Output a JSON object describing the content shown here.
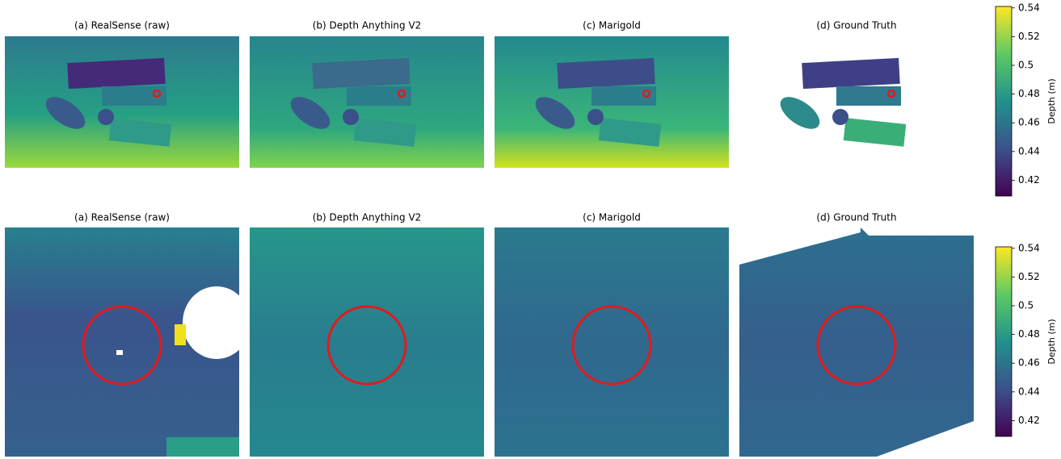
{
  "figure": {
    "rows": [
      {
        "panels": [
          {
            "title": "(a) RealSense (raw)"
          },
          {
            "title": "(b) Depth Anything V2"
          },
          {
            "title": "(c) Marigold"
          },
          {
            "title": "(d) Ground Truth"
          }
        ],
        "colorbar": {
          "label": "Depth (m)",
          "ylim": [
            0.409,
            0.541
          ],
          "yticks": [
            0.42,
            0.44,
            0.46,
            0.48,
            0.5,
            0.52,
            0.54
          ]
        }
      },
      {
        "panels": [
          {
            "title": "(a) RealSense (raw)"
          },
          {
            "title": "(b) Depth Anything V2"
          },
          {
            "title": "(c) Marigold"
          },
          {
            "title": "(d) Ground Truth"
          }
        ],
        "colorbar": {
          "label": "Depth (m)",
          "ylim": [
            0.409,
            0.541
          ],
          "yticks": [
            0.42,
            0.44,
            0.46,
            0.48,
            0.5,
            0.52,
            0.54
          ]
        }
      }
    ]
  }
}
